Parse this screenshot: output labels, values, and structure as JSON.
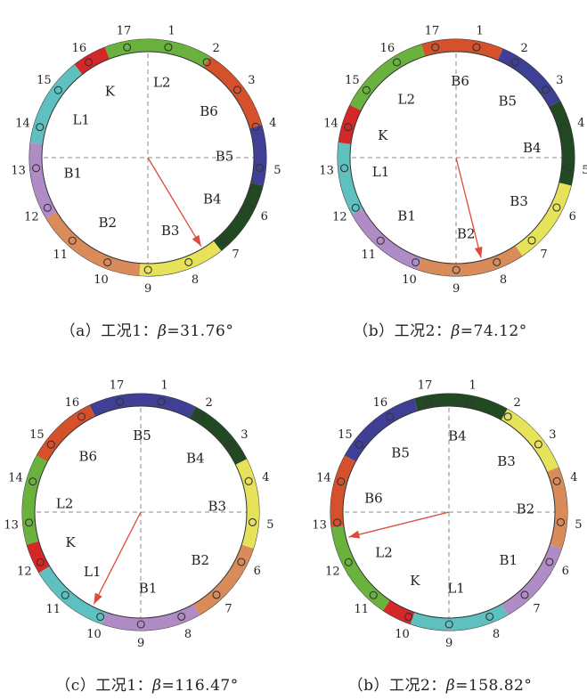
{
  "panels": [
    {
      "caption": {
        "prefix": "（a）工况1：",
        "symbol": "β",
        "eq": "=31.76°"
      },
      "arrow_angle_deg": 149,
      "segments": [
        {
          "label": "L2",
          "color": "#6ab23e",
          "from": 17,
          "to": 2
        },
        {
          "label": "B6",
          "color": "#d5512b",
          "from": 2,
          "to": 4
        },
        {
          "label": "B5",
          "color": "#3f3f95",
          "from": 4,
          "to": 5.4
        },
        {
          "label": "B4",
          "color": "#224a22",
          "from": 5.4,
          "to": 7.2
        },
        {
          "label": "B3",
          "color": "#e6e25a",
          "from": 7.2,
          "to": 9.2
        },
        {
          "label": "B2",
          "color": "#d98b5a",
          "from": 9.2,
          "to": 11.8
        },
        {
          "label": "B1",
          "color": "#b08cc6",
          "from": 11.8,
          "to": 13.6
        },
        {
          "label": "L1",
          "color": "#5fc1bf",
          "from": 13.6,
          "to": 15.7
        },
        {
          "label": "K",
          "color": "#d42727",
          "from": 15.7,
          "to": 16.5
        },
        {
          "label": "",
          "color": "#6ab23e",
          "from": 16.5,
          "to": 17
        }
      ]
    },
    {
      "caption": {
        "prefix": "（b）工况2：",
        "symbol": "β",
        "eq": "=74.12°"
      },
      "arrow_angle_deg": 166,
      "segments": [
        {
          "label": "B6",
          "color": "#d5512b",
          "from": 16.7,
          "to": 1.6
        },
        {
          "label": "B5",
          "color": "#3f3f95",
          "from": 1.6,
          "to": 3.4
        },
        {
          "label": "B4",
          "color": "#224a22",
          "from": 3.4,
          "to": 5.4
        },
        {
          "label": "B3",
          "color": "#e6e25a",
          "from": 5.4,
          "to": 7.4
        },
        {
          "label": "B2",
          "color": "#d98b5a",
          "from": 7.4,
          "to": 9.9
        },
        {
          "label": "B1",
          "color": "#b08cc6",
          "from": 9.9,
          "to": 11.9
        },
        {
          "label": "L1",
          "color": "#5fc1bf",
          "from": 11.9,
          "to": 13.6
        },
        {
          "label": "K",
          "color": "#d42727",
          "from": 13.6,
          "to": 14.5
        },
        {
          "label": "L2",
          "color": "#6ab23e",
          "from": 14.5,
          "to": 16.7
        }
      ]
    },
    {
      "caption": {
        "prefix": "（c）工况1：",
        "symbol": "β",
        "eq": "=116.47°"
      },
      "arrow_angle_deg": 207,
      "segments": [
        {
          "label": "B5",
          "color": "#3f3f95",
          "from": 16.3,
          "to": 1.8
        },
        {
          "label": "B4",
          "color": "#224a22",
          "from": 1.8,
          "to": 3.5
        },
        {
          "label": "B3",
          "color": "#e6e25a",
          "from": 3.5,
          "to": 5.6
        },
        {
          "label": "B2",
          "color": "#d98b5a",
          "from": 5.6,
          "to": 7.6
        },
        {
          "label": "B1",
          "color": "#b08cc6",
          "from": 7.6,
          "to": 9.9
        },
        {
          "label": "L1",
          "color": "#5fc1bf",
          "from": 9.9,
          "to": 11.8
        },
        {
          "label": "K",
          "color": "#d42727",
          "from": 11.8,
          "to": 12.5
        },
        {
          "label": "L2",
          "color": "#6ab23e",
          "from": 12.5,
          "to": 14.6
        },
        {
          "label": "B6",
          "color": "#d5512b",
          "from": 14.6,
          "to": 16.3
        }
      ]
    },
    {
      "caption": {
        "prefix": "（b）工况2：",
        "symbol": "β",
        "eq": "=158.82°"
      },
      "arrow_angle_deg": 256,
      "segments": [
        {
          "label": "B4",
          "color": "#224a22",
          "from": 16.7,
          "to": 1.9
        },
        {
          "label": "B3",
          "color": "#e6e25a",
          "from": 1.9,
          "to": 3.7
        },
        {
          "label": "B2",
          "color": "#d98b5a",
          "from": 3.7,
          "to": 5.6
        },
        {
          "label": "B1",
          "color": "#b08cc6",
          "from": 5.6,
          "to": 7.6
        },
        {
          "label": "L1",
          "color": "#5fc1bf",
          "from": 7.6,
          "to": 9.9
        },
        {
          "label": "K",
          "color": "#d42727",
          "from": 9.9,
          "to": 10.6
        },
        {
          "label": "L2",
          "color": "#6ab23e",
          "from": 10.6,
          "to": 12.9
        },
        {
          "label": "B6",
          "color": "#d5512b",
          "from": 12.9,
          "to": 14.6
        },
        {
          "label": "B5",
          "color": "#3f3f95",
          "from": 14.6,
          "to": 16.7
        }
      ]
    }
  ],
  "node_labels": [
    "1",
    "2",
    "3",
    "4",
    "5",
    "6",
    "7",
    "8",
    "9",
    "10",
    "11",
    "12",
    "13",
    "14",
    "15",
    "16",
    "17"
  ]
}
